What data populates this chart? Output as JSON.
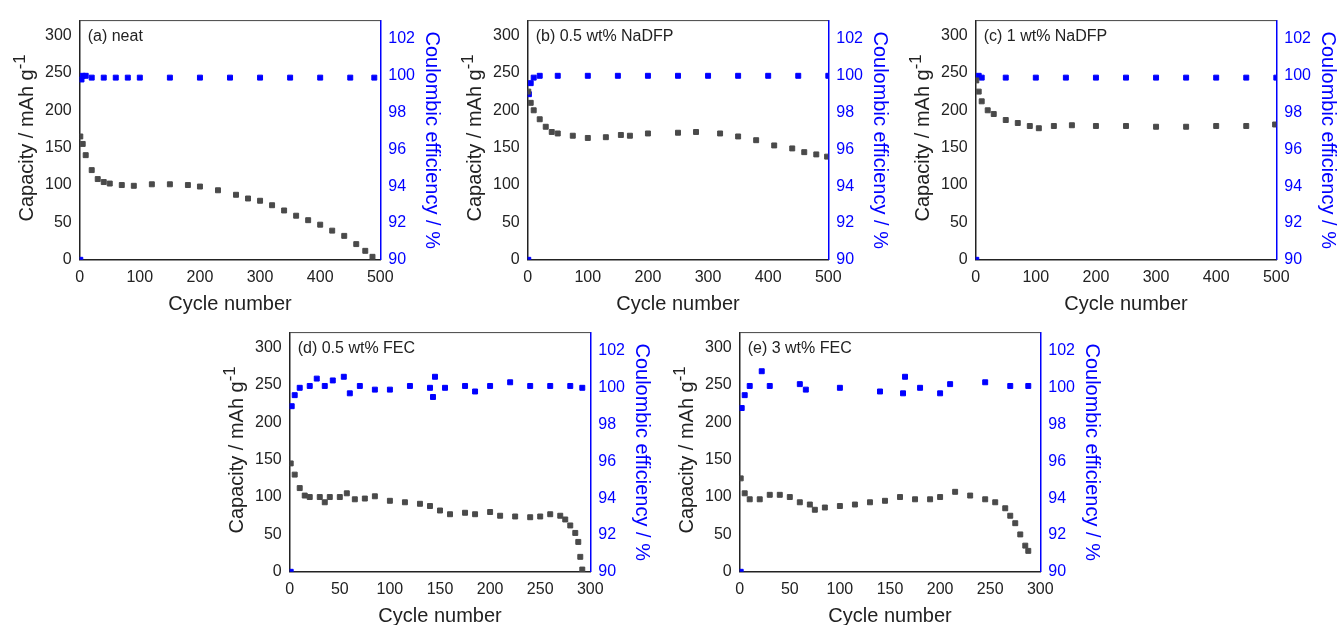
{
  "chart_data": [
    {
      "type": "scatter",
      "annotations": [
        "(a) neat"
      ],
      "xlabel": "Cycle number",
      "ylabel": "Capacity / mAh g$^{-1}$",
      "y2label": "Coulombic efficiency / %",
      "marker": "square",
      "xlim": [
        0,
        500
      ],
      "xticks": [
        0,
        100,
        200,
        300,
        400,
        500
      ],
      "ylim": [
        0,
        320
      ],
      "yticks": [
        0,
        50,
        100,
        150,
        200,
        250,
        300
      ],
      "y2lim": [
        90,
        103
      ],
      "y2ticks": [
        90,
        92,
        94,
        96,
        98,
        100,
        102
      ],
      "series": [
        {
          "color": "#4a4a4a",
          "x": [
            1,
            5,
            10,
            20,
            30,
            40,
            50,
            70,
            90,
            120,
            150,
            180,
            200,
            230,
            260,
            280,
            300,
            320,
            340,
            360,
            380,
            400,
            420,
            440,
            460,
            475,
            487
          ],
          "values": [
            165,
            155,
            140,
            120,
            108,
            104,
            102,
            100,
            99,
            101,
            101,
            100,
            98,
            93,
            87,
            82,
            79,
            73,
            66,
            59,
            53,
            47,
            39,
            32,
            21,
            12,
            4
          ]
        },
        {
          "color": "#0000ff",
          "axis": "y2",
          "x": [
            1,
            3,
            5,
            10,
            20,
            40,
            60,
            80,
            100,
            150,
            200,
            250,
            300,
            350,
            400,
            450,
            490
          ],
          "values": [
            90,
            99.8,
            100,
            100,
            99.9,
            99.9,
            99.9,
            99.9,
            99.9,
            99.9,
            99.9,
            99.9,
            99.9,
            99.9,
            99.9,
            99.9,
            99.9
          ]
        }
      ]
    },
    {
      "type": "scatter",
      "annotations": [
        "(b) 0.5 wt% NaDFP"
      ],
      "xlabel": "Cycle number",
      "ylabel": "Capacity / mAh g$^{-1}$",
      "y2label": "Coulombic efficiency / %",
      "marker": "square",
      "xlim": [
        0,
        500
      ],
      "xticks": [
        0,
        100,
        200,
        300,
        400,
        500
      ],
      "ylim": [
        0,
        320
      ],
      "yticks": [
        0,
        50,
        100,
        150,
        200,
        250,
        300
      ],
      "y2lim": [
        90,
        103
      ],
      "y2ticks": [
        90,
        92,
        94,
        96,
        98,
        100,
        102
      ],
      "series": [
        {
          "color": "#4a4a4a",
          "x": [
            1,
            5,
            10,
            20,
            30,
            40,
            50,
            75,
            100,
            130,
            155,
            170,
            200,
            250,
            280,
            320,
            350,
            380,
            410,
            440,
            460,
            480,
            498
          ],
          "values": [
            225,
            210,
            200,
            188,
            178,
            171,
            169,
            166,
            163,
            164,
            167,
            166,
            169,
            170,
            171,
            169,
            165,
            160,
            153,
            149,
            144,
            141,
            138
          ]
        },
        {
          "color": "#0000ff",
          "axis": "y2",
          "x": [
            1,
            2,
            5,
            10,
            20,
            50,
            100,
            150,
            200,
            250,
            300,
            350,
            400,
            450,
            500
          ],
          "values": [
            90,
            99,
            99.6,
            99.9,
            100,
            100,
            100,
            100,
            100,
            100,
            100,
            100,
            100,
            100,
            100
          ]
        }
      ]
    },
    {
      "type": "scatter",
      "annotations": [
        "(c) 1 wt% NaDFP"
      ],
      "xlabel": "Cycle number",
      "ylabel": "Capacity / mAh g$^{-1}$",
      "y2label": "Coulombic efficiency / %",
      "marker": "square",
      "xlim": [
        0,
        500
      ],
      "xticks": [
        0,
        100,
        200,
        300,
        400,
        500
      ],
      "ylim": [
        0,
        320
      ],
      "yticks": [
        0,
        50,
        100,
        150,
        200,
        250,
        300
      ],
      "y2lim": [
        90,
        103
      ],
      "y2ticks": [
        90,
        92,
        94,
        96,
        98,
        100,
        102
      ],
      "series": [
        {
          "color": "#4a4a4a",
          "x": [
            1,
            5,
            10,
            20,
            30,
            50,
            70,
            90,
            105,
            130,
            160,
            200,
            250,
            300,
            350,
            400,
            450,
            498
          ],
          "values": [
            240,
            225,
            212,
            200,
            195,
            187,
            183,
            179,
            176,
            179,
            180,
            179,
            179,
            178,
            178,
            179,
            179,
            181
          ]
        },
        {
          "color": "#0000ff",
          "axis": "y2",
          "x": [
            1,
            5,
            10,
            50,
            100,
            150,
            200,
            250,
            300,
            350,
            400,
            450,
            500
          ],
          "values": [
            90,
            100,
            99.9,
            99.9,
            99.9,
            99.9,
            99.9,
            99.9,
            99.9,
            99.9,
            99.9,
            99.9,
            99.9
          ]
        }
      ]
    },
    {
      "type": "scatter",
      "annotations": [
        "(d) 0.5 wt% FEC"
      ],
      "xlabel": "Cycle number",
      "ylabel": "Capacity / mAh g$^{-1}$",
      "y2label": "Coulombic efficiency / %",
      "marker": "square",
      "xlim": [
        0,
        300
      ],
      "xticks": [
        0,
        50,
        100,
        150,
        200,
        250,
        300
      ],
      "ylim": [
        0,
        320
      ],
      "yticks": [
        0,
        50,
        100,
        150,
        200,
        250,
        300
      ],
      "y2lim": [
        90,
        103
      ],
      "y2ticks": [
        90,
        92,
        94,
        96,
        98,
        100,
        102
      ],
      "series": [
        {
          "color": "#4a4a4a",
          "x": [
            1,
            5,
            10,
            15,
            20,
            30,
            35,
            40,
            50,
            57,
            65,
            75,
            85,
            100,
            115,
            130,
            140,
            150,
            160,
            175,
            185,
            200,
            210,
            225,
            240,
            250,
            260,
            270,
            275,
            280,
            285,
            288,
            290,
            292
          ],
          "values": [
            145,
            130,
            112,
            102,
            100,
            100,
            93,
            100,
            100,
            105,
            97,
            98,
            101,
            95,
            93,
            91,
            88,
            82,
            77,
            79,
            77,
            80,
            75,
            74,
            73,
            74,
            77,
            75,
            70,
            62,
            52,
            40,
            20,
            3
          ]
        },
        {
          "color": "#0000ff",
          "axis": "y2",
          "x": [
            1,
            2,
            5,
            10,
            20,
            27,
            35,
            43,
            54,
            60,
            70,
            85,
            100,
            120,
            140,
            143,
            145,
            155,
            175,
            185,
            200,
            220,
            240,
            260,
            280,
            292
          ],
          "values": [
            90,
            99,
            99.6,
            100,
            100.1,
            100.5,
            100.1,
            100.4,
            100.6,
            99.7,
            100.1,
            99.9,
            99.9,
            100.1,
            100,
            99.5,
            100.6,
            100,
            100.1,
            99.8,
            100.1,
            100.3,
            100.1,
            100.1,
            100.1,
            100
          ]
        }
      ]
    },
    {
      "type": "scatter",
      "annotations": [
        "(e) 3 wt% FEC"
      ],
      "xlabel": "Cycle number",
      "ylabel": "Capacity / mAh g$^{-1}$",
      "y2label": "Coulombic efficiency / %",
      "marker": "square",
      "xlim": [
        0,
        300
      ],
      "xticks": [
        0,
        50,
        100,
        150,
        200,
        250,
        300
      ],
      "ylim": [
        0,
        320
      ],
      "yticks": [
        0,
        50,
        100,
        150,
        200,
        250,
        300
      ],
      "y2lim": [
        90,
        103
      ],
      "y2ticks": [
        90,
        92,
        94,
        96,
        98,
        100,
        102
      ],
      "series": [
        {
          "color": "#4a4a4a",
          "x": [
            1,
            5,
            10,
            20,
            30,
            40,
            50,
            60,
            70,
            75,
            85,
            100,
            115,
            130,
            145,
            160,
            175,
            190,
            200,
            215,
            230,
            245,
            255,
            265,
            270,
            275,
            280,
            285,
            288
          ],
          "values": [
            125,
            105,
            97,
            97,
            103,
            103,
            100,
            93,
            90,
            83,
            86,
            88,
            90,
            93,
            95,
            100,
            97,
            97,
            100,
            107,
            102,
            97,
            93,
            85,
            75,
            65,
            50,
            35,
            28
          ]
        },
        {
          "color": "#0000ff",
          "axis": "y2",
          "x": [
            1,
            2,
            5,
            10,
            22,
            30,
            60,
            66,
            100,
            140,
            163,
            165,
            180,
            200,
            210,
            245,
            270,
            288
          ],
          "values": [
            90,
            98.9,
            99.6,
            100.1,
            100.9,
            100.1,
            100.2,
            99.9,
            100,
            99.8,
            99.7,
            100.6,
            100,
            99.7,
            100.2,
            100.3,
            100.1,
            100.1
          ]
        }
      ]
    }
  ]
}
